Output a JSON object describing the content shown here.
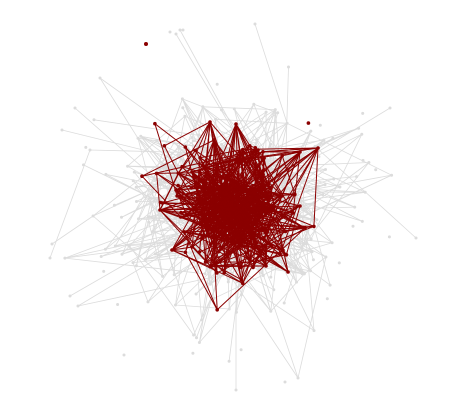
{
  "figure": {
    "type": "network-graph",
    "colors": {
      "background": "#ffffff",
      "highlight": "#8b0000",
      "muted": "#dcdcdc"
    },
    "legend": "none",
    "labels": "none"
  }
}
